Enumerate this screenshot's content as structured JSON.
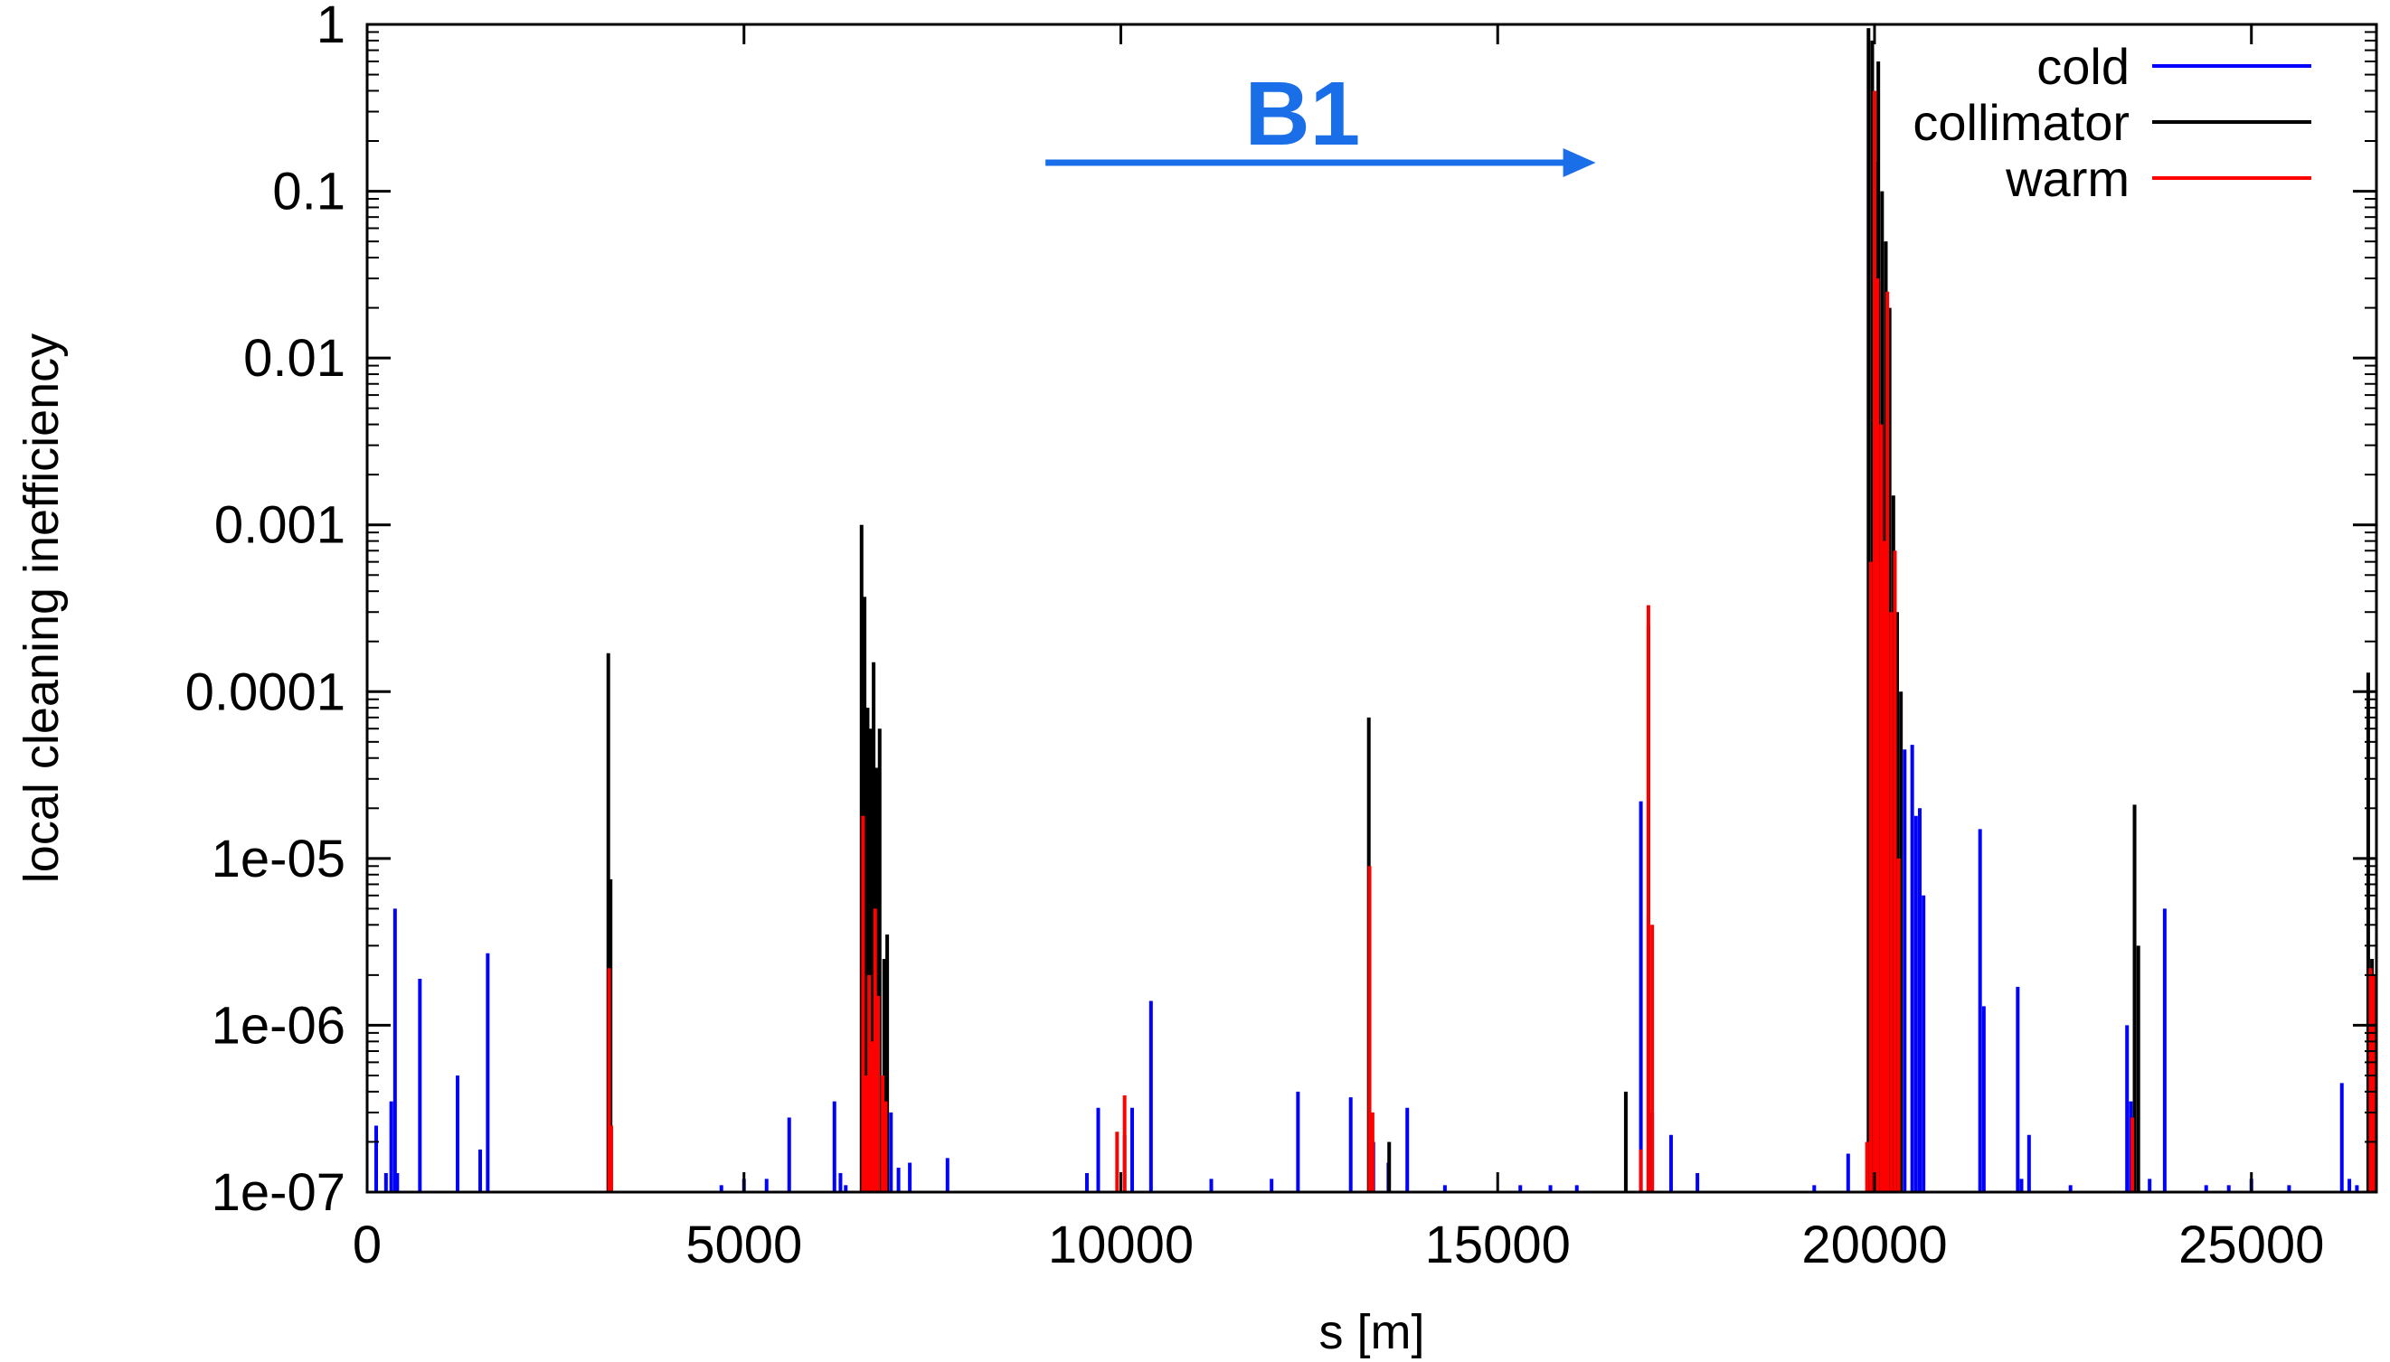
{
  "chart_data": {
    "type": "bar",
    "subtype": "impulse",
    "xlabel": "s [m]",
    "ylabel": "local cleaning inefficiency",
    "xlim": [
      0,
      26659
    ],
    "ylim": [
      1e-07,
      1
    ],
    "y_scale": "log",
    "grid": false,
    "legend_position": "top-right",
    "x_ticks": [
      {
        "value": 0,
        "label": "0"
      },
      {
        "value": 5000,
        "label": "5000"
      },
      {
        "value": 10000,
        "label": "10000"
      },
      {
        "value": 15000,
        "label": "15000"
      },
      {
        "value": 20000,
        "label": "20000"
      },
      {
        "value": 25000,
        "label": "25000"
      }
    ],
    "y_ticks": [
      {
        "value": 1,
        "label": "1"
      },
      {
        "value": 0.1,
        "label": "0.1"
      },
      {
        "value": 0.01,
        "label": "0.01"
      },
      {
        "value": 0.001,
        "label": "0.001"
      },
      {
        "value": 0.0001,
        "label": "0.0001"
      },
      {
        "value": 1e-05,
        "label": "1e-05"
      },
      {
        "value": 1e-06,
        "label": "1e-06"
      },
      {
        "value": 1e-07,
        "label": "1e-07"
      }
    ],
    "annotation": {
      "text": "B1",
      "color": "#1a6ee8",
      "arrow_from_x": 9000,
      "arrow_to_x": 16300,
      "direction": "right"
    },
    "series": [
      {
        "name": "cold",
        "color": "#0000ff",
        "points": [
          [
            120,
            2.5e-07
          ],
          [
            250,
            1.3e-07
          ],
          [
            320,
            3.5e-07
          ],
          [
            370,
            5e-06
          ],
          [
            400,
            1.3e-07
          ],
          [
            700,
            1.9e-06
          ],
          [
            1200,
            5e-07
          ],
          [
            1500,
            1.8e-07
          ],
          [
            1600,
            2.7e-06
          ],
          [
            4700,
            1.1e-07
          ],
          [
            5000,
            1.2e-07
          ],
          [
            5300,
            1.2e-07
          ],
          [
            5600,
            2.8e-07
          ],
          [
            6200,
            3.5e-07
          ],
          [
            6280,
            1.3e-07
          ],
          [
            6350,
            1.1e-07
          ],
          [
            6950,
            3e-07
          ],
          [
            7050,
            1.4e-07
          ],
          [
            7200,
            1.5e-07
          ],
          [
            7700,
            1.6e-07
          ],
          [
            9550,
            1.3e-07
          ],
          [
            9700,
            3.2e-07
          ],
          [
            10050,
            2.2e-07
          ],
          [
            10150,
            3.2e-07
          ],
          [
            10400,
            1.4e-06
          ],
          [
            11200,
            1.2e-07
          ],
          [
            12000,
            1.2e-07
          ],
          [
            12350,
            4e-07
          ],
          [
            13050,
            3.7e-07
          ],
          [
            13350,
            2e-07
          ],
          [
            13550,
            1.5e-07
          ],
          [
            13800,
            3.2e-07
          ],
          [
            14300,
            1.1e-07
          ],
          [
            15300,
            1.1e-07
          ],
          [
            15700,
            1.1e-07
          ],
          [
            16050,
            1.1e-07
          ],
          [
            16900,
            2.2e-05
          ],
          [
            17000,
            4.5e-06
          ],
          [
            17050,
            3e-07
          ],
          [
            17300,
            2.2e-07
          ],
          [
            17650,
            1.3e-07
          ],
          [
            19200,
            1.1e-07
          ],
          [
            19650,
            1.7e-07
          ],
          [
            20400,
            4.5e-05
          ],
          [
            20500,
            4.8e-05
          ],
          [
            20550,
            1.8e-05
          ],
          [
            20600,
            2e-05
          ],
          [
            20650,
            6e-06
          ],
          [
            21400,
            1.5e-05
          ],
          [
            21450,
            1.3e-06
          ],
          [
            21900,
            1.7e-06
          ],
          [
            21950,
            1.2e-07
          ],
          [
            22050,
            2.2e-07
          ],
          [
            22600,
            1.1e-07
          ],
          [
            23350,
            1e-06
          ],
          [
            23400,
            3.5e-07
          ],
          [
            23650,
            1.2e-07
          ],
          [
            23850,
            5e-06
          ],
          [
            24400,
            1.1e-07
          ],
          [
            24700,
            1.1e-07
          ],
          [
            25000,
            1.2e-07
          ],
          [
            25500,
            1.1e-07
          ],
          [
            26200,
            4.5e-07
          ],
          [
            26300,
            1.2e-07
          ],
          [
            26400,
            1.1e-07
          ],
          [
            26580,
            1.5e-07
          ]
        ]
      },
      {
        "name": "collimator",
        "color": "#000000",
        "points": [
          [
            3200,
            0.00017
          ],
          [
            3230,
            7.5e-06
          ],
          [
            6560,
            0.001
          ],
          [
            6600,
            0.00037
          ],
          [
            6640,
            8e-05
          ],
          [
            6680,
            6e-05
          ],
          [
            6720,
            0.00015
          ],
          [
            6760,
            3.5e-05
          ],
          [
            6800,
            6e-05
          ],
          [
            6860,
            2.5e-06
          ],
          [
            6900,
            3.5e-06
          ],
          [
            13290,
            7e-05
          ],
          [
            13560,
            2e-07
          ],
          [
            16700,
            4e-07
          ],
          [
            17000,
            0.00025
          ],
          [
            19920,
            0.95
          ],
          [
            19970,
            0.8
          ],
          [
            20010,
            0.15
          ],
          [
            20050,
            0.6
          ],
          [
            20100,
            0.1
          ],
          [
            20150,
            0.05
          ],
          [
            20200,
            0.02
          ],
          [
            20250,
            0.0015
          ],
          [
            20300,
            0.0003
          ],
          [
            20350,
            0.0001
          ],
          [
            23450,
            2.1e-05
          ],
          [
            23500,
            3e-06
          ],
          [
            26550,
            0.00013
          ],
          [
            26600,
            2.5e-06
          ]
        ]
      },
      {
        "name": "warm",
        "color": "#ff0000",
        "points": [
          [
            3210,
            2.2e-06
          ],
          [
            3240,
            2.5e-07
          ],
          [
            6580,
            1.8e-05
          ],
          [
            6620,
            5e-07
          ],
          [
            6660,
            2e-06
          ],
          [
            6700,
            8e-07
          ],
          [
            6740,
            5e-06
          ],
          [
            6780,
            1.5e-06
          ],
          [
            6840,
            5e-07
          ],
          [
            6880,
            3.5e-07
          ],
          [
            9950,
            2.3e-07
          ],
          [
            10050,
            3.8e-07
          ],
          [
            13300,
            9e-06
          ],
          [
            13340,
            3e-07
          ],
          [
            16900,
            1.8e-07
          ],
          [
            17000,
            0.00033
          ],
          [
            17050,
            4e-06
          ],
          [
            19900,
            2e-07
          ],
          [
            19950,
            0.0006
          ],
          [
            20000,
            0.4
          ],
          [
            20040,
            0.03
          ],
          [
            20090,
            0.004
          ],
          [
            20130,
            0.0008
          ],
          [
            20170,
            0.025
          ],
          [
            20220,
            0.0003
          ],
          [
            20270,
            0.0007
          ],
          [
            20320,
            1e-05
          ],
          [
            23420,
            2.8e-07
          ],
          [
            26580,
            2.2e-06
          ],
          [
            26620,
            2e-06
          ]
        ]
      }
    ]
  }
}
